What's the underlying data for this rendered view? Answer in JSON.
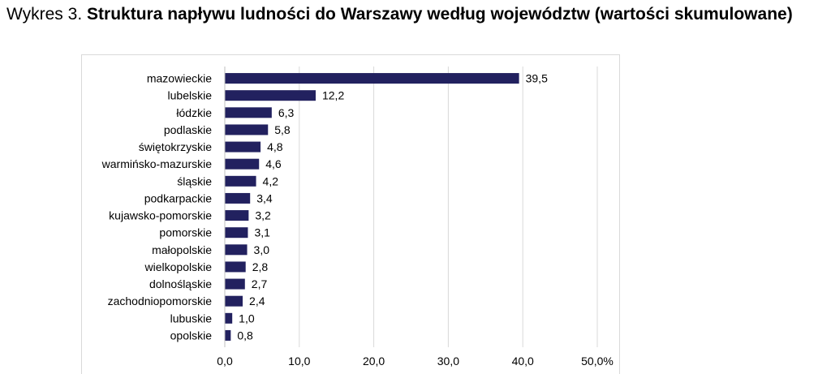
{
  "title_prefix": "Wykres 3.",
  "title_main": "Struktura napływu ludności do Warszawy według województw (wartości skumulowane)",
  "chart_data": {
    "type": "bar",
    "orientation": "horizontal",
    "categories": [
      "mazowieckie",
      "lubelskie",
      "łódzkie",
      "podlaskie",
      "świętokrzyskie",
      "warmińsko-mazurskie",
      "śląskie",
      "podkarpackie",
      "kujawsko-pomorskie",
      "pomorskie",
      "małopolskie",
      "wielkopolskie",
      "dolnośląskie",
      "zachodniopomorskie",
      "lubuskie",
      "opolskie"
    ],
    "values": [
      39.5,
      12.2,
      6.3,
      5.8,
      4.8,
      4.6,
      4.2,
      3.4,
      3.2,
      3.1,
      3.0,
      2.8,
      2.7,
      2.4,
      1.0,
      0.8
    ],
    "value_labels": [
      "39,5",
      "12,2",
      "6,3",
      "5,8",
      "4,8",
      "4,6",
      "4,2",
      "3,4",
      "3,2",
      "3,1",
      "3,0",
      "2,8",
      "2,7",
      "2,4",
      "1,0",
      "0,8"
    ],
    "xlim": [
      0,
      50
    ],
    "x_ticks": [
      "0,0",
      "10,0",
      "20,0",
      "30,0",
      "40,0",
      "50,0%"
    ],
    "grid": "vertical",
    "bar_color": "#22215f"
  }
}
